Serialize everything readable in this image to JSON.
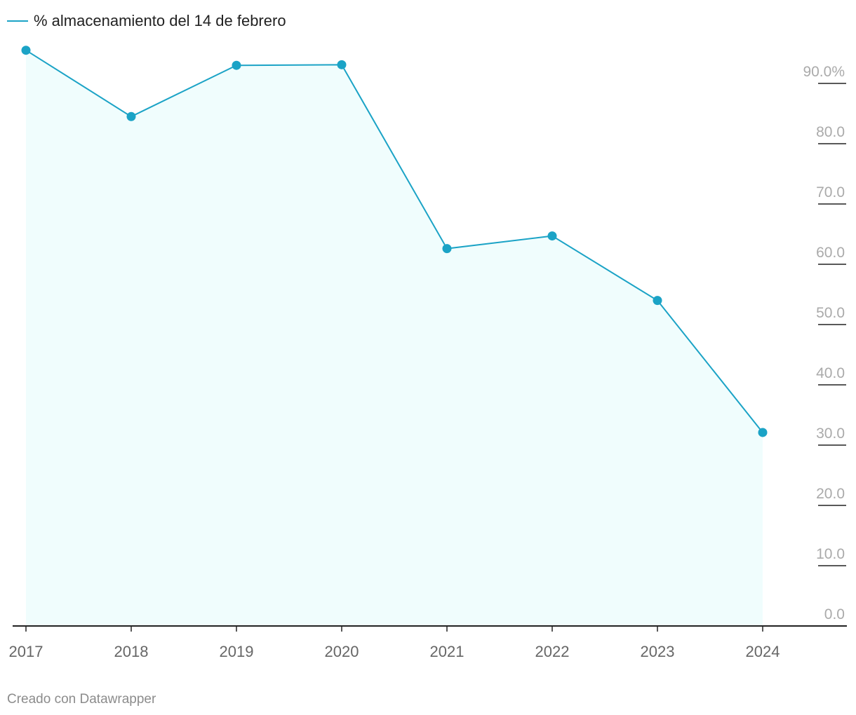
{
  "chart_data": {
    "type": "area",
    "legend": {
      "placement": "top-left",
      "entries": [
        "% almacenamiento del 14 de febrero"
      ]
    },
    "x": [
      "2017",
      "2018",
      "2019",
      "2020",
      "2021",
      "2022",
      "2023",
      "2024"
    ],
    "series": [
      {
        "name": "% almacenamiento del 14 de febrero",
        "values": [
          95.5,
          84.5,
          93.0,
          93.1,
          62.6,
          64.7,
          54.0,
          32.1
        ],
        "color": "#1ba3c6",
        "fill_color": "#f0fdfd"
      }
    ],
    "ylim": [
      0,
      96
    ],
    "y_ticks": [
      {
        "value": 0,
        "label": "0.0"
      },
      {
        "value": 10,
        "label": "10.0"
      },
      {
        "value": 20,
        "label": "20.0"
      },
      {
        "value": 30,
        "label": "30.0"
      },
      {
        "value": 40,
        "label": "40.0"
      },
      {
        "value": 50,
        "label": "50.0"
      },
      {
        "value": 60,
        "label": "60.0"
      },
      {
        "value": 70,
        "label": "70.0"
      },
      {
        "value": 80,
        "label": "80.0"
      },
      {
        "value": 90,
        "label": "90.0%"
      }
    ],
    "y_axis_side": "right",
    "grid": false,
    "axis_color": "#222222",
    "tick_label_color": "#aaaaaa"
  },
  "credit": "Creado con Datawrapper"
}
